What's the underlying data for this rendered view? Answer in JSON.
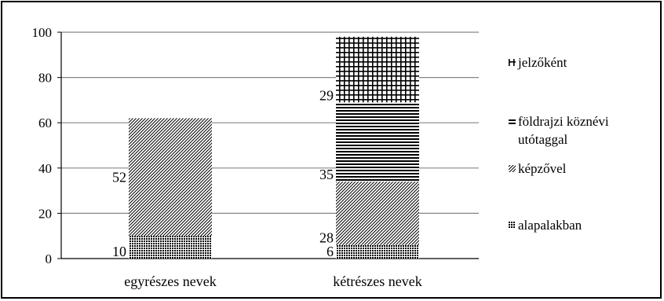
{
  "chart_data": {
    "type": "bar",
    "stacked": true,
    "title": "",
    "xlabel": "",
    "ylabel": "",
    "ylim": [
      0,
      100
    ],
    "yticks": [
      0,
      20,
      40,
      60,
      80,
      100
    ],
    "grid": true,
    "legend_position": "right",
    "categories": [
      "egyrészes nevek",
      "kétrészes nevek"
    ],
    "series": [
      {
        "name": "alapalakban",
        "values": [
          10,
          6
        ],
        "pattern": "dots"
      },
      {
        "name": "képzővel",
        "values": [
          52,
          28
        ],
        "pattern": "diagonal"
      },
      {
        "name": "földrajzi köznévi utótaggal",
        "values": [
          null,
          35
        ],
        "pattern": "horizontal"
      },
      {
        "name": "jelzőként",
        "values": [
          null,
          29
        ],
        "pattern": "grid"
      }
    ],
    "colors": {
      "ink": "#000000",
      "gridline": "#868686",
      "background": "#ffffff"
    }
  }
}
